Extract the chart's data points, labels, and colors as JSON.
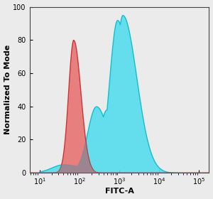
{
  "xlabel": "FITC-A",
  "ylabel": "Normalized To Mode",
  "ylim": [
    0,
    100
  ],
  "yticks": [
    0,
    20,
    40,
    60,
    80,
    100
  ],
  "background_color": "#ebebeb",
  "red_fill_color": "#e87070",
  "red_edge_color": "#cc2222",
  "cyan_fill_color": "#55ddee",
  "cyan_edge_color": "#00bbcc",
  "gray_fill_color": "#7a8a9a",
  "label_fontsize": 8,
  "tick_fontsize": 7
}
